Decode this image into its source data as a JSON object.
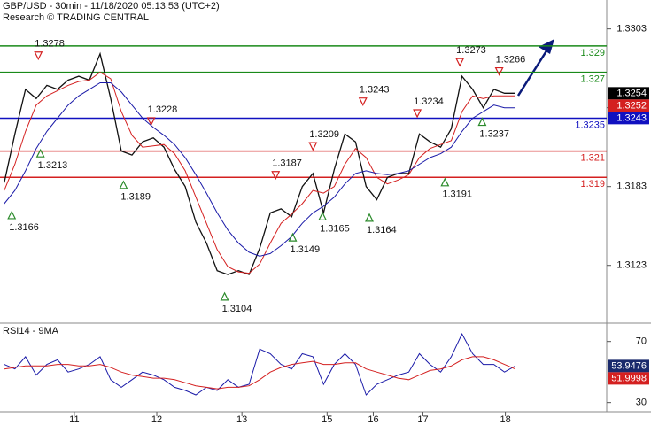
{
  "title": "GBP/USD - 30min - 11/18/2020 05:13:53 (UTC+2)",
  "subtitle": "Research © TRADING CENTRAL",
  "chart_data": [
    {
      "type": "line",
      "x": [
        0,
        1,
        2,
        3,
        4,
        5,
        6,
        7,
        8,
        9,
        10,
        11,
        12,
        13,
        14,
        15,
        16,
        17,
        18,
        19,
        20,
        21,
        22,
        23,
        24,
        25,
        26,
        27,
        28,
        29,
        30,
        31,
        32,
        33,
        34,
        35,
        36,
        37,
        38,
        39,
        40,
        41,
        42,
        43,
        44,
        45,
        46,
        47,
        48
      ],
      "xlim": [
        -0.4,
        56.6
      ],
      "xticks": [
        {
          "value": 6.58,
          "label": "11"
        },
        {
          "value": 14.33,
          "label": "12"
        },
        {
          "value": 22.33,
          "label": "13"
        },
        {
          "value": 30.33,
          "label": "15"
        },
        {
          "value": 34.67,
          "label": "16"
        },
        {
          "value": 39.33,
          "label": "17"
        },
        {
          "value": 47.08,
          "label": "18"
        }
      ],
      "ylim": [
        1.3079,
        1.3325
      ],
      "yticks": [
        1.3303,
        1.3243,
        1.3183,
        1.3123
      ],
      "series": [
        {
          "color": "#111111",
          "values": [
            1.3186,
            1.3223,
            1.3257,
            1.325,
            1.326,
            1.3257,
            1.3264,
            1.3267,
            1.3264,
            1.3284,
            1.325,
            1.321,
            1.3207,
            1.3217,
            1.322,
            1.3213,
            1.3196,
            1.3183,
            1.3156,
            1.314,
            1.3119,
            1.3116,
            1.3119,
            1.3116,
            1.3136,
            1.3163,
            1.3166,
            1.316,
            1.3183,
            1.3193,
            1.3163,
            1.3196,
            1.3223,
            1.3217,
            1.3183,
            1.3173,
            1.319,
            1.3193,
            1.3193,
            1.3223,
            1.3217,
            1.3213,
            1.3227,
            1.3267,
            1.3257,
            1.3243,
            1.3257,
            1.3254,
            1.3254
          ]
        },
        {
          "color": "#d42020",
          "values": [
            1.318,
            1.32,
            1.3225,
            1.3245,
            1.3252,
            1.3256,
            1.326,
            1.3263,
            1.3264,
            1.327,
            1.3265,
            1.324,
            1.3222,
            1.3213,
            1.3214,
            1.3215,
            1.3208,
            1.3195,
            1.3175,
            1.3155,
            1.3135,
            1.3122,
            1.3118,
            1.3117,
            1.3124,
            1.314,
            1.3155,
            1.3162,
            1.317,
            1.318,
            1.3178,
            1.3183,
            1.32,
            1.3212,
            1.3205,
            1.319,
            1.3185,
            1.3188,
            1.3192,
            1.3205,
            1.3212,
            1.3215,
            1.3218,
            1.324,
            1.3252,
            1.325,
            1.3252,
            1.3252,
            1.3252
          ]
        },
        {
          "color": "#1a1aa8",
          "values": [
            1.317,
            1.318,
            1.3195,
            1.3212,
            1.3225,
            1.3235,
            1.3245,
            1.3252,
            1.3257,
            1.3262,
            1.3262,
            1.3255,
            1.3245,
            1.3235,
            1.3228,
            1.3222,
            1.3215,
            1.3205,
            1.3192,
            1.3178,
            1.3163,
            1.315,
            1.314,
            1.3133,
            1.313,
            1.3132,
            1.3138,
            1.3145,
            1.3155,
            1.3163,
            1.3168,
            1.3175,
            1.3185,
            1.3193,
            1.3195,
            1.3193,
            1.3192,
            1.3193,
            1.3195,
            1.32,
            1.3205,
            1.3208,
            1.3213,
            1.3225,
            1.3235,
            1.324,
            1.3245,
            1.3243,
            1.3243
          ]
        }
      ],
      "last_box_colors": [
        "#000000",
        "#d42020",
        "#1010c0"
      ],
      "levels": [
        {
          "value": 1.329,
          "color": "#1a8a1a"
        },
        {
          "value": 1.327,
          "color": "#1a8a1a"
        },
        {
          "value": 1.3235,
          "color": "#1010c0"
        },
        {
          "value": 1.321,
          "color": "#d42020"
        },
        {
          "value": 1.319,
          "color": "#d42020"
        }
      ],
      "annotations": [
        {
          "value": 1.3278,
          "x": 3.2,
          "marker": "down"
        },
        {
          "value": 1.3213,
          "x": 3.4,
          "marker": "up"
        },
        {
          "value": 1.3166,
          "x": 0.7,
          "marker": "up"
        },
        {
          "value": 1.3189,
          "x": 11.2,
          "marker": "up"
        },
        {
          "value": 1.3228,
          "x": 13.8,
          "marker": "down"
        },
        {
          "value": 1.3104,
          "x": 20.7,
          "marker": "up"
        },
        {
          "value": 1.3187,
          "x": 25.5,
          "marker": "down"
        },
        {
          "value": 1.3149,
          "x": 27.1,
          "marker": "up"
        },
        {
          "value": 1.3209,
          "x": 29,
          "marker": "down"
        },
        {
          "value": 1.3165,
          "x": 29.9,
          "marker": "up"
        },
        {
          "value": 1.3243,
          "x": 33.7,
          "marker": "down"
        },
        {
          "value": 1.3164,
          "x": 34.3,
          "marker": "up"
        },
        {
          "value": 1.3234,
          "x": 38.8,
          "marker": "down"
        },
        {
          "value": 1.3191,
          "x": 41.4,
          "marker": "up"
        },
        {
          "value": 1.3273,
          "x": 42.8,
          "marker": "down"
        },
        {
          "value": 1.3237,
          "x": 44.9,
          "marker": "up"
        },
        {
          "value": 1.3266,
          "x": 46.5,
          "marker": "down"
        }
      ]
    },
    {
      "type": "line",
      "title": "RSI14 - 9MA",
      "x": [
        0,
        1,
        2,
        3,
        4,
        5,
        6,
        7,
        8,
        9,
        10,
        11,
        12,
        13,
        14,
        15,
        16,
        17,
        18,
        19,
        20,
        21,
        22,
        23,
        24,
        25,
        26,
        27,
        28,
        29,
        30,
        31,
        32,
        33,
        34,
        35,
        36,
        37,
        38,
        39,
        40,
        41,
        42,
        43,
        44,
        45,
        46,
        47,
        48
      ],
      "xlim": [
        -0.4,
        56.6
      ],
      "ylim": [
        24,
        82
      ],
      "yticks": [
        70,
        30
      ],
      "series": [
        {
          "color": "#1a1aa8",
          "values": [
            55,
            52,
            60,
            48,
            55,
            58,
            50,
            52,
            55,
            60,
            45,
            40,
            45,
            50,
            48,
            45,
            40,
            38,
            35,
            40,
            38,
            45,
            40,
            42,
            65,
            62,
            55,
            52,
            62,
            60,
            42,
            55,
            62,
            55,
            35,
            42,
            45,
            48,
            50,
            62,
            55,
            50,
            60,
            75,
            62,
            55,
            55,
            50,
            53.9476
          ]
        },
        {
          "color": "#d42020",
          "values": [
            52,
            53,
            54,
            54,
            54,
            55,
            55,
            54,
            54,
            55,
            53,
            50,
            48,
            47,
            46,
            46,
            45,
            43,
            41,
            40,
            39,
            40,
            40,
            41,
            45,
            50,
            53,
            55,
            56,
            57,
            55,
            55,
            56,
            56,
            52,
            50,
            48,
            46,
            45,
            48,
            51,
            52,
            54,
            58,
            60,
            60,
            58,
            55,
            51.9998
          ]
        }
      ],
      "last_box_colors": [
        "#1a2a6c",
        "#d42020"
      ]
    }
  ]
}
